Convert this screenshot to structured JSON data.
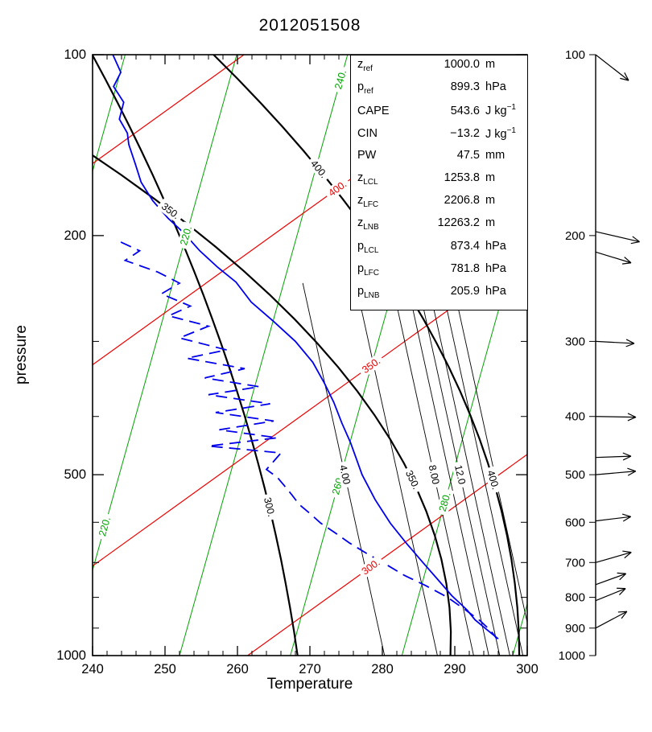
{
  "title": "2012051508",
  "chart_data": {
    "type": "line",
    "title": "2012051508",
    "xlabel": "Temperature",
    "ylabel": "pressure",
    "x_range": [
      240,
      300
    ],
    "x_ticks": [
      240,
      250,
      260,
      270,
      280,
      290,
      300
    ],
    "x_minor_step": 2,
    "y_scale": "log",
    "y_axis_inverted": true,
    "y_range": [
      100,
      1000
    ],
    "y_ticks_labeled": [
      100,
      200,
      500,
      1000
    ],
    "y_ticks_minor": [
      300,
      400,
      600,
      700,
      800,
      900
    ],
    "grid": false,
    "series": [
      {
        "name": "temperature",
        "color": "#0000ee",
        "style": "solid",
        "width": 1.8,
        "points_p_T": [
          [
            100,
            242.8
          ],
          [
            107,
            243.9
          ],
          [
            113,
            242.9
          ],
          [
            120,
            244.3
          ],
          [
            128,
            243.7
          ],
          [
            135,
            244.8
          ],
          [
            141,
            245.0
          ],
          [
            152,
            245.9
          ],
          [
            163,
            246.7
          ],
          [
            175,
            248.3
          ],
          [
            187,
            250.4
          ],
          [
            198,
            252.6
          ],
          [
            212,
            254.8
          ],
          [
            226,
            257.3
          ],
          [
            239,
            259.8
          ],
          [
            258,
            261.9
          ],
          [
            278,
            265.0
          ],
          [
            300,
            268.0
          ],
          [
            325,
            270.4
          ],
          [
            352,
            272.0
          ],
          [
            379,
            273.3
          ],
          [
            410,
            274.4
          ],
          [
            442,
            275.6
          ],
          [
            470,
            276.4
          ],
          [
            500,
            277.2
          ],
          [
            550,
            279.0
          ],
          [
            602,
            281.1
          ],
          [
            650,
            283.3
          ],
          [
            700,
            285.6
          ],
          [
            746,
            287.6
          ],
          [
            795,
            289.6
          ],
          [
            840,
            291.7
          ],
          [
            872,
            292.8
          ],
          [
            905,
            294.4
          ],
          [
            938,
            296.0
          ]
        ]
      },
      {
        "name": "dewpoint",
        "color": "#0000ee",
        "style": "dashed",
        "dash": "14 8",
        "width": 1.8,
        "points_p_T": [
          [
            205,
            243.9
          ],
          [
            212,
            246.5
          ],
          [
            220,
            244.5
          ],
          [
            230,
            249.0
          ],
          [
            240,
            252.0
          ],
          [
            250,
            249.5
          ],
          [
            262,
            253.5
          ],
          [
            272,
            250.5
          ],
          [
            283,
            256.0
          ],
          [
            296,
            252.0
          ],
          [
            310,
            258.5
          ],
          [
            320,
            253.0
          ],
          [
            333,
            261.0
          ],
          [
            345,
            255.5
          ],
          [
            357,
            263.0
          ],
          [
            368,
            256.0
          ],
          [
            381,
            264.5
          ],
          [
            394,
            257.0
          ],
          [
            407,
            265.0
          ],
          [
            421,
            257.5
          ],
          [
            434,
            265.5
          ],
          [
            448,
            256.0
          ],
          [
            460,
            266.0
          ],
          [
            475,
            265.0
          ],
          [
            490,
            264.0
          ],
          [
            505,
            265.5
          ],
          [
            522,
            266.5
          ],
          [
            540,
            267.5
          ],
          [
            560,
            268.5
          ],
          [
            580,
            270.0
          ],
          [
            602,
            271.5
          ],
          [
            625,
            273.5
          ],
          [
            650,
            275.5
          ],
          [
            678,
            278.0
          ],
          [
            705,
            280.5
          ],
          [
            735,
            283.0
          ],
          [
            765,
            286.0
          ],
          [
            800,
            289.0
          ],
          [
            840,
            291.5
          ],
          [
            875,
            293.5
          ],
          [
            910,
            295.0
          ],
          [
            938,
            295.8
          ]
        ]
      }
    ],
    "isoline_families": [
      {
        "name": "green-isolines",
        "color": "#00a400",
        "width": 1,
        "slope_K_per_decade": 23.2,
        "lines": [
          {
            "value": 200,
            "x_at_1000hPa": 221.3
          },
          {
            "value": 220,
            "x_at_1000hPa": 236.7,
            "labels": [
              {
                "text": "220.",
                "p": 200
              },
              {
                "text": "220.",
                "p": 610
              }
            ]
          },
          {
            "value": 240,
            "x_at_1000hPa": 252.0,
            "labels": [
              {
                "text": "240.",
                "p": 110
              }
            ]
          },
          {
            "value": 260,
            "x_at_1000hPa": 267.3,
            "labels": [
              {
                "text": "260.",
                "p": 520
              }
            ]
          },
          {
            "value": 280,
            "x_at_1000hPa": 282.7,
            "labels": [
              {
                "text": "280.",
                "p": 555
              }
            ]
          },
          {
            "value": 300,
            "x_at_1000hPa": 298.0
          }
        ]
      },
      {
        "name": "red-isolines",
        "color": "#ee0000",
        "width": 1.2,
        "slope_K_per_decade": 115.3,
        "lines": [
          {
            "value": 250,
            "x_at_1000hPa": 300.0
          },
          {
            "value": 300,
            "x_at_1000hPa": 261.4,
            "labels": [
              {
                "text": "300.",
                "p": 712
              }
            ]
          },
          {
            "value": 350,
            "x_at_1000hPa": 222.8,
            "labels": [
              {
                "text": "350.",
                "p": 329
              }
            ]
          },
          {
            "value": 400,
            "x_at_1000hPa": 184.2,
            "labels": [
              {
                "text": "400.",
                "p": 167
              }
            ]
          },
          {
            "value": 450,
            "x_at_1000hPa": 145.6
          }
        ]
      },
      {
        "name": "black-thick-curves",
        "color": "#000000",
        "width": 2.2,
        "curved": true,
        "lines": [
          {
            "value": 300,
            "x_at_1000hPa": 268.3,
            "a": 11.67,
            "b": 16.67,
            "labels": [
              {
                "text": "300.",
                "p": 566
              }
            ]
          },
          {
            "value": 350,
            "x_at_1000hPa": 289.4,
            "a": -4.51,
            "b": 76.67,
            "labels": [
              {
                "text": "350.",
                "p": 510
              },
              {
                "text": "350.",
                "p": 182
              }
            ]
          },
          {
            "value": 400,
            "x_at_1000hPa": 298.9,
            "a": 0,
            "b": 42.2,
            "labels": [
              {
                "text": "400.",
                "p": 510
              },
              {
                "text": "400.",
                "p": 155
              }
            ]
          }
        ]
      },
      {
        "name": "black-thin-lines",
        "color": "#000000",
        "width": 0.9,
        "slope_K_per_decade": -18.2,
        "d_max": 0.62,
        "lines": [
          {
            "value": 4,
            "x_at_1000hPa": 280.3,
            "labels": [
              {
                "text": "4.00",
                "p": 500
              }
            ]
          },
          {
            "value": 6,
            "x_at_1000hPa": 287.6
          },
          {
            "value": 8,
            "x_at_1000hPa": 292.6,
            "labels": [
              {
                "text": "8.00",
                "p": 500
              }
            ]
          },
          {
            "value": 10,
            "x_at_1000hPa": 294.7
          },
          {
            "value": 12,
            "x_at_1000hPa": 296.2,
            "labels": [
              {
                "text": "12.0",
                "p": 500
              }
            ]
          },
          {
            "value": 14,
            "x_at_1000hPa": 297.6
          },
          {
            "value": 16,
            "x_at_1000hPa": 299.4
          },
          {
            "value": 18,
            "x_at_1000hPa": 301.0
          }
        ]
      }
    ],
    "info_box": {
      "rows": [
        {
          "label": "z",
          "sub": "ref",
          "value": "1000.0",
          "unit": "m",
          "unit_sup": ""
        },
        {
          "label": "p",
          "sub": "ref",
          "value": "899.3",
          "unit": "hPa",
          "unit_sup": ""
        },
        {
          "label": "CAPE",
          "sub": "",
          "value": "543.6",
          "unit": "J kg",
          "unit_sup": "−1"
        },
        {
          "label": "CIN",
          "sub": "",
          "value": "−13.2",
          "unit": "J kg",
          "unit_sup": "−1"
        },
        {
          "label": "PW",
          "sub": "",
          "value": "47.5",
          "unit": "mm",
          "unit_sup": ""
        },
        {
          "label": "z",
          "sub": "LCL",
          "value": "1253.8",
          "unit": "m",
          "unit_sup": ""
        },
        {
          "label": "z",
          "sub": "LFC",
          "value": "2206.8",
          "unit": "m",
          "unit_sup": ""
        },
        {
          "label": "z",
          "sub": "LNB",
          "value": "12263.2",
          "unit": "m",
          "unit_sup": ""
        },
        {
          "label": "p",
          "sub": "LCL",
          "value": "873.4",
          "unit": "hPa",
          "unit_sup": ""
        },
        {
          "label": "p",
          "sub": "LFC",
          "value": "781.8",
          "unit": "hPa",
          "unit_sup": ""
        },
        {
          "label": "p",
          "sub": "LNB",
          "value": "205.9",
          "unit": "hPa",
          "unit_sup": ""
        }
      ]
    },
    "wind_panel": {
      "axis_pressure_labels": [
        100,
        200,
        300,
        400,
        500,
        600,
        700,
        800,
        900,
        1000
      ],
      "arrows": [
        {
          "p": 100,
          "angle_deg": 38,
          "length": 52
        },
        {
          "p": 197,
          "angle_deg": 13,
          "length": 56
        },
        {
          "p": 213,
          "angle_deg": 17,
          "length": 46
        },
        {
          "p": 300,
          "angle_deg": 3,
          "length": 48
        },
        {
          "p": 400,
          "angle_deg": 1,
          "length": 50
        },
        {
          "p": 468,
          "angle_deg": -2,
          "length": 44
        },
        {
          "p": 500,
          "angle_deg": -5,
          "length": 50
        },
        {
          "p": 597,
          "angle_deg": -7,
          "length": 44
        },
        {
          "p": 700,
          "angle_deg": -16,
          "length": 46
        },
        {
          "p": 762,
          "angle_deg": -20,
          "length": 40
        },
        {
          "p": 810,
          "angle_deg": -22,
          "length": 40
        },
        {
          "p": 900,
          "angle_deg": -28,
          "length": 44
        }
      ]
    }
  }
}
